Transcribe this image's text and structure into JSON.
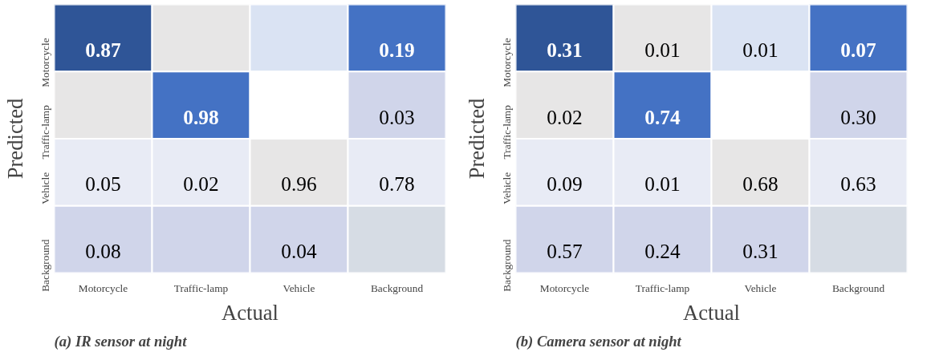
{
  "chart_data": [
    {
      "type": "heatmap",
      "data_labels": true,
      "title": "(a) IR sensor at night",
      "xlabel": "Actual",
      "ylabel": "Predicted",
      "categories": [
        "Motorcycle",
        "Traffic-lamp",
        "Vehicle",
        "Background"
      ],
      "y_categories": [
        "Motorcycle",
        "Traffic-lamp",
        "Vehicle",
        "Background"
      ],
      "cells": [
        [
          0.87,
          null,
          null,
          0.19
        ],
        [
          null,
          0.98,
          null,
          0.03
        ],
        [
          0.05,
          0.02,
          0.96,
          0.78
        ],
        [
          0.08,
          null,
          0.04,
          null
        ]
      ],
      "colors": [
        [
          "#2f5597",
          "#e7e6e6",
          "#dae3f3",
          "#4472c4"
        ],
        [
          "#e7e6e6",
          "#4472c4",
          "#ffffff",
          "#d0d5ea"
        ],
        [
          "#e8ebf5",
          "#e8ebf5",
          "#e7e6e6",
          "#e8ebf5"
        ],
        [
          "#d0d5ea",
          "#d0d5ea",
          "#d0d5ea",
          "#d6dce4"
        ]
      ]
    },
    {
      "type": "heatmap",
      "data_labels": true,
      "title": "(b) Camera sensor at night",
      "xlabel": "Actual",
      "ylabel": "Predicted",
      "categories": [
        "Motorcycle",
        "Traffic-lamp",
        "Vehicle",
        "Background"
      ],
      "y_categories": [
        "Motorcycle",
        "Traffic-lamp",
        "Vehicle",
        "Background"
      ],
      "cells": [
        [
          0.31,
          0.01,
          0.01,
          0.07
        ],
        [
          0.02,
          0.74,
          null,
          0.3
        ],
        [
          0.09,
          0.01,
          0.68,
          0.63
        ],
        [
          0.57,
          0.24,
          0.31,
          null
        ]
      ],
      "cell_labels": [
        [
          "0.31",
          "0.01",
          "0.01",
          "0.07"
        ],
        [
          "0.02",
          "0.74",
          null,
          "0.30"
        ],
        [
          "0.09",
          "0.01",
          "0.68",
          "0.63"
        ],
        [
          "0.57",
          "0.24",
          "0.31",
          null
        ]
      ],
      "colors": [
        [
          "#2f5597",
          "#e7e6e6",
          "#dae3f3",
          "#4472c4"
        ],
        [
          "#e7e6e6",
          "#4472c4",
          "#ffffff",
          "#d0d5ea"
        ],
        [
          "#e8ebf5",
          "#e8ebf5",
          "#e7e6e6",
          "#e8ebf5"
        ],
        [
          "#d0d5ea",
          "#d0d5ea",
          "#d0d5ea",
          "#d6dce4"
        ]
      ]
    }
  ]
}
